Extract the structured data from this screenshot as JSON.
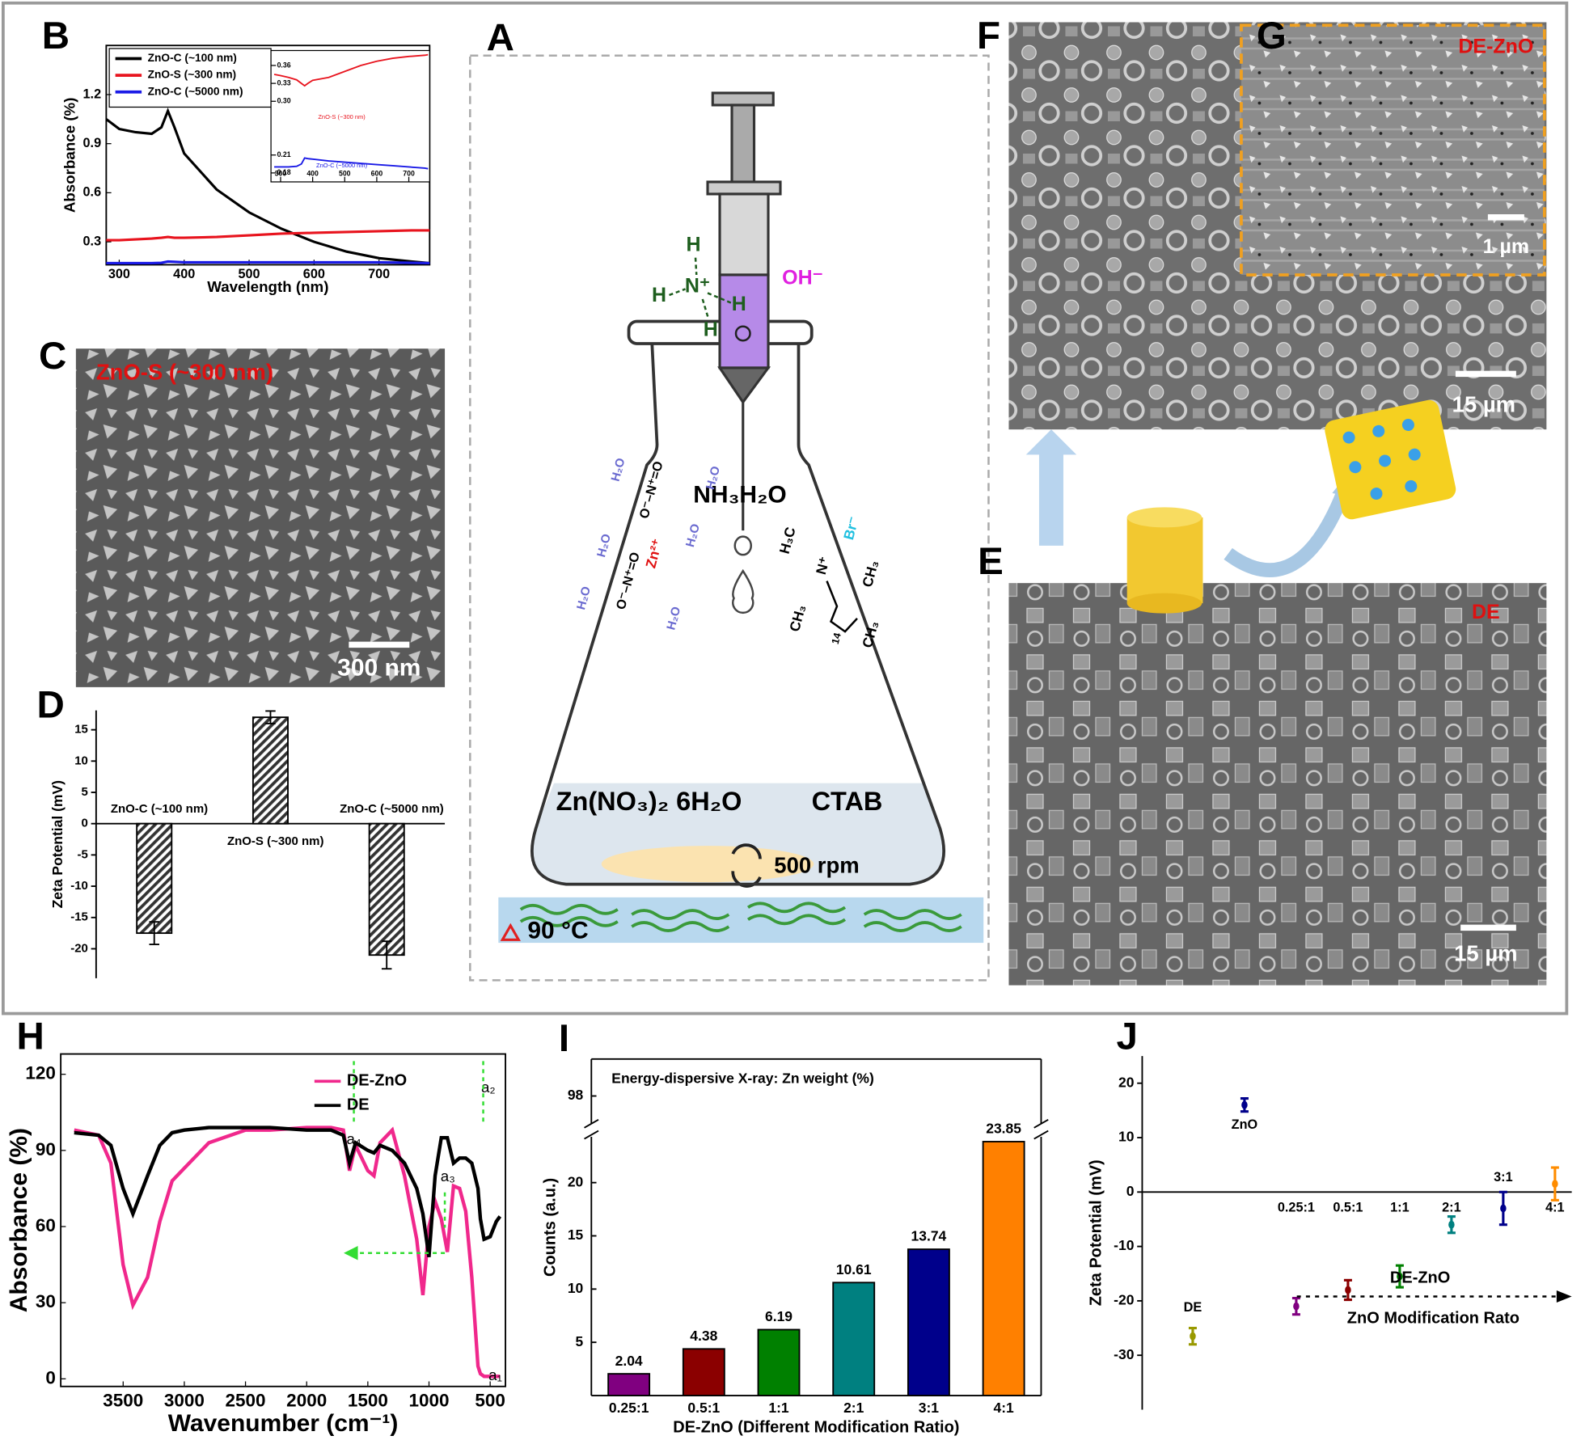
{
  "panel_labels": [
    "A",
    "B",
    "C",
    "D",
    "E",
    "F",
    "G",
    "H",
    "I",
    "J"
  ],
  "images": {
    "C": {
      "caption": "ZnO-S (~300 nm)",
      "scale": "300 nm"
    },
    "F": {
      "scale": "15 µm"
    },
    "G": {
      "caption": "DE-ZnO",
      "scale": "1 µm"
    },
    "E": {
      "caption": "DE",
      "scale": "15 µm"
    }
  },
  "scheme": {
    "texts": [
      "H",
      "N⁺",
      "H",
      "H",
      "H",
      "OH⁻",
      "NH₃H₂O",
      "H₂O",
      "H₂O",
      "H₂O",
      "H₂O",
      "H₂O",
      "H₂O",
      "Zn²⁺",
      "O⁻–N⁺=O",
      "O⁻–N⁺=O",
      "Br⁻",
      "H₃C",
      "N⁺",
      "CH₃",
      "CH₃",
      "14",
      "CH₃",
      "Zn(NO₃)₂ 6H₂O",
      "CTAB",
      "500 rpm",
      "90 °C"
    ]
  },
  "chart_data": [
    {
      "type": "line",
      "xlabel": "Wavelength (nm)",
      "ylabel": "Absorbance (%)",
      "x": [
        280,
        300,
        325,
        350,
        365,
        375,
        385,
        400,
        450,
        500,
        550,
        600,
        650,
        700,
        750,
        778
      ],
      "series": [
        {
          "name": "ZnO-C (~100 nm)",
          "color": "#000000",
          "values": [
            1.05,
            0.99,
            0.97,
            0.96,
            1.0,
            1.1,
            1.0,
            0.84,
            0.62,
            0.48,
            0.38,
            0.3,
            0.24,
            0.2,
            0.18,
            0.17
          ]
        },
        {
          "name": "ZnO-S (~300 nm)",
          "color": "#e8141e",
          "values": [
            0.31,
            0.31,
            0.315,
            0.32,
            0.325,
            0.33,
            0.325,
            0.325,
            0.33,
            0.34,
            0.35,
            0.355,
            0.36,
            0.365,
            0.37,
            0.37
          ]
        },
        {
          "name": "ZnO-C (~5000 nm)",
          "color": "#1a1ae6",
          "values": [
            0.17,
            0.17,
            0.17,
            0.17,
            0.172,
            0.18,
            0.178,
            0.175,
            0.175,
            0.175,
            0.175,
            0.175,
            0.175,
            0.175,
            0.172,
            0.17
          ]
        }
      ],
      "xlim": [
        280,
        778
      ],
      "ylim": [
        0.16,
        1.5
      ],
      "xticks": [
        300,
        400,
        500,
        600,
        700
      ],
      "yticks": [
        0.3,
        0.6,
        0.9,
        1.2
      ],
      "legend": "upper-left"
    },
    {
      "type": "line",
      "x": [
        280,
        300,
        325,
        350,
        365,
        375,
        385,
        400,
        450,
        500,
        550,
        600,
        650,
        700,
        750,
        760
      ],
      "series": [
        {
          "name": "ZnO-S (~300 nm)",
          "color": "#e8141e",
          "values": [
            0.345,
            0.343,
            0.34,
            0.336,
            0.33,
            0.326,
            0.33,
            0.335,
            0.34,
            0.35,
            0.36,
            0.367,
            0.372,
            0.375,
            0.377,
            0.378
          ]
        },
        {
          "name": "ZnO-C (~5000 nm)",
          "color": "#1a1ae6",
          "values": [
            0.19,
            0.19,
            0.19,
            0.191,
            0.195,
            0.205,
            0.204,
            0.203,
            0.2,
            0.198,
            0.196,
            0.194,
            0.192,
            0.19,
            0.188,
            0.187
          ]
        }
      ],
      "xlim": [
        270,
        765
      ],
      "ylim": [
        0.165,
        0.385
      ],
      "xticks": [
        300,
        400,
        500,
        600,
        700
      ],
      "yticks": [
        0.18,
        0.21,
        {
          "value": 0.3,
          "label": "0.30"
        },
        0.33,
        0.36
      ],
      "legend": "inline"
    },
    {
      "type": "bar",
      "ylabel": "Zeta Potential (mV)",
      "categories": [
        "ZnO-C (~100 nm)",
        "ZnO-S (~300 nm)",
        "ZnO-C (~5000 nm)"
      ],
      "values": [
        -17.5,
        17,
        -21
      ],
      "errors": [
        1.8,
        1,
        2.2
      ],
      "color": "#444444",
      "hatch": true,
      "ylim": [
        -24.7,
        18.1
      ],
      "yticks": [
        -20,
        -15,
        -10,
        -5,
        0,
        5,
        10,
        15
      ]
    },
    {
      "type": "line",
      "xlabel": "Wavenumber (cm⁻¹)",
      "ylabel": "Absorbance (%)",
      "x": [
        3900,
        3700,
        3600,
        3500,
        3420,
        3300,
        3200,
        3100,
        3000,
        2800,
        2500,
        2300,
        2000,
        1800,
        1700,
        1650,
        1600,
        1500,
        1450,
        1400,
        1300,
        1200,
        1100,
        1050,
        1000,
        950,
        900,
        850,
        800,
        750,
        700,
        650,
        600,
        580,
        550,
        500,
        450,
        420
      ],
      "series": [
        {
          "name": "DE-ZnO",
          "color": "#f0288c",
          "values": [
            98,
            96,
            85,
            45,
            29,
            40,
            62,
            78,
            83,
            93,
            98,
            98,
            99,
            99,
            98,
            82,
            92,
            82,
            80,
            93,
            98,
            80,
            55,
            33,
            60,
            70,
            63,
            50,
            76,
            75,
            66,
            40,
            5,
            2,
            1,
            1,
            1,
            1
          ]
        },
        {
          "name": "DE",
          "color": "#000000",
          "values": [
            97,
            96,
            92,
            75,
            65,
            80,
            92,
            97,
            98,
            99,
            99,
            99,
            98,
            98,
            96,
            85,
            93,
            90,
            89,
            92,
            90,
            85,
            75,
            65,
            48,
            80,
            95,
            95,
            85,
            87,
            87,
            85,
            75,
            63,
            55,
            56,
            62,
            64
          ]
        }
      ],
      "xlim": [
        4010,
        375
      ],
      "ylim": [
        -3,
        128
      ],
      "xticks": [
        3500,
        3000,
        2500,
        2000,
        1500,
        1000,
        500
      ],
      "yticks": [
        0,
        30,
        60,
        90,
        120
      ],
      "legend": "upper-right",
      "annotations": [
        "a₁",
        "a₂",
        "a₃",
        "a₄"
      ]
    },
    {
      "type": "bar",
      "title": "Energy-dispersive X-ray: Zn weight (%)",
      "xlabel": "DE-ZnO (Different Modification Ratio)",
      "ylabel": "Counts (a.u.)",
      "categories": [
        "0.25:1",
        "0.5:1",
        "1:1",
        "2:1",
        "3:1",
        "4:1"
      ],
      "values": [
        2.04,
        4.38,
        6.19,
        10.61,
        13.74,
        23.85
      ],
      "colors": [
        "#800080",
        "#8b0000",
        "#008000",
        "#008080",
        "#00008b",
        "#ff8000"
      ],
      "ylim": [
        0,
        24.3
      ],
      "yticks": [
        5,
        10,
        15,
        20
      ],
      "break_ylim": [
        96.5,
        100
      ],
      "break_yticks": [
        98
      ]
    },
    {
      "type": "scatter",
      "ylabel": "Zeta Potential (mV)",
      "categories": [
        "DE",
        "ZnO",
        "0.25:1",
        "0.5:1",
        "1:1",
        "2:1",
        "3:1",
        "4:1"
      ],
      "values": [
        -26.5,
        16,
        -21,
        -18,
        -15.5,
        -6,
        -3,
        1.5
      ],
      "errors": [
        1.5,
        1.2,
        1.5,
        1.8,
        2,
        1.5,
        3,
        3
      ],
      "colors": [
        "#999900",
        "#00008b",
        "#800080",
        "#8b0000",
        "#008000",
        "#008080",
        "#00008b",
        "#ff8c00"
      ],
      "ylim": [
        -40,
        25
      ],
      "yticks": [
        -30,
        -20,
        -10,
        0,
        10,
        20
      ],
      "annotations": [
        "DE-ZnO",
        "ZnO Modification Rato"
      ]
    }
  ]
}
